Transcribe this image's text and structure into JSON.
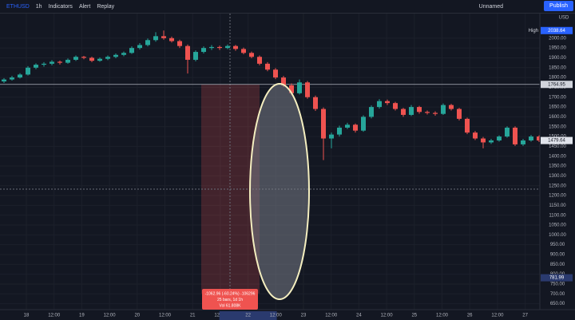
{
  "toolbar": {
    "symbol": "ETHUSD",
    "interval": "1h",
    "indicators": "Indicators",
    "alert": "Alert",
    "replay": "Replay",
    "layout": "Unnamed",
    "publish": "Publish"
  },
  "chart_data": {
    "type": "candlestick",
    "currency": "USD",
    "colors": {
      "up": "#26a69a",
      "down": "#ef5350"
    },
    "candles": [
      [
        1780,
        1797,
        1772,
        1790
      ],
      [
        1790,
        1808,
        1784,
        1800
      ],
      [
        1800,
        1822,
        1795,
        1815
      ],
      [
        1815,
        1858,
        1810,
        1850
      ],
      [
        1850,
        1872,
        1842,
        1865
      ],
      [
        1865,
        1878,
        1855,
        1870
      ],
      [
        1870,
        1888,
        1862,
        1880
      ],
      [
        1880,
        1886,
        1866,
        1875
      ],
      [
        1875,
        1897,
        1870,
        1890
      ],
      [
        1890,
        1912,
        1884,
        1905
      ],
      [
        1905,
        1910,
        1893,
        1900
      ],
      [
        1900,
        1906,
        1878,
        1885
      ],
      [
        1885,
        1902,
        1880,
        1895
      ],
      [
        1895,
        1912,
        1888,
        1905
      ],
      [
        1905,
        1922,
        1898,
        1915
      ],
      [
        1915,
        1932,
        1908,
        1925
      ],
      [
        1925,
        1958,
        1920,
        1950
      ],
      [
        1950,
        1975,
        1942,
        1965
      ],
      [
        1965,
        1998,
        1958,
        1990
      ],
      [
        1990,
        2030,
        1982,
        2010
      ],
      [
        2010,
        2038.64,
        1992,
        2000
      ],
      [
        2000,
        2008,
        1978,
        1985
      ],
      [
        1985,
        1992,
        1950,
        1960
      ],
      [
        1960,
        1968,
        1820,
        1890
      ],
      [
        1890,
        1938,
        1882,
        1930
      ],
      [
        1930,
        1958,
        1922,
        1950
      ],
      [
        1950,
        1965,
        1940,
        1955
      ],
      [
        1955,
        1962,
        1940,
        1950
      ],
      [
        1950,
        1968,
        1944,
        1960
      ],
      [
        1960,
        1966,
        1936,
        1945
      ],
      [
        1945,
        1952,
        1918,
        1925
      ],
      [
        1925,
        1932,
        1898,
        1905
      ],
      [
        1905,
        1912,
        1862,
        1870
      ],
      [
        1870,
        1878,
        1832,
        1840
      ],
      [
        1840,
        1848,
        1792,
        1800
      ],
      [
        1800,
        1808,
        1752,
        1760
      ],
      [
        1760,
        1770,
        1710,
        1720
      ],
      [
        1720,
        1790,
        1714,
        1775
      ],
      [
        1775,
        1782,
        1692,
        1700
      ],
      [
        1700,
        1708,
        1630,
        1640
      ],
      [
        1640,
        1648,
        1380,
        1490
      ],
      [
        1490,
        1520,
        1440,
        1510
      ],
      [
        1510,
        1555,
        1500,
        1545
      ],
      [
        1545,
        1570,
        1538,
        1560
      ],
      [
        1560,
        1566,
        1520,
        1530
      ],
      [
        1530,
        1608,
        1524,
        1600
      ],
      [
        1600,
        1658,
        1592,
        1650
      ],
      [
        1650,
        1690,
        1642,
        1680
      ],
      [
        1680,
        1688,
        1660,
        1670
      ],
      [
        1670,
        1676,
        1632,
        1640
      ],
      [
        1640,
        1646,
        1600,
        1610
      ],
      [
        1610,
        1660,
        1604,
        1650
      ],
      [
        1650,
        1656,
        1616,
        1625
      ],
      [
        1625,
        1632,
        1612,
        1620
      ],
      [
        1620,
        1628,
        1606,
        1615
      ],
      [
        1615,
        1668,
        1610,
        1660
      ],
      [
        1660,
        1666,
        1632,
        1640
      ],
      [
        1640,
        1646,
        1582,
        1590
      ],
      [
        1590,
        1596,
        1512,
        1520
      ],
      [
        1520,
        1528,
        1482,
        1490
      ],
      [
        1490,
        1498,
        1440,
        1470
      ],
      [
        1470,
        1488,
        1462,
        1480
      ],
      [
        1480,
        1506,
        1474,
        1500
      ],
      [
        1500,
        1552,
        1494,
        1545
      ],
      [
        1545,
        1552,
        1452,
        1460
      ],
      [
        1460,
        1488,
        1452,
        1480
      ],
      [
        1480,
        1508,
        1474,
        1500
      ],
      [
        1500,
        1506,
        1472,
        1479.64
      ]
    ],
    "ylim": [
      620,
      2125
    ],
    "yticks": [
      {
        "value": 650,
        "label": "650.00"
      },
      {
        "value": 700,
        "label": "700.00"
      },
      {
        "value": 750,
        "label": "750.00"
      },
      {
        "value": 800,
        "label": "800.00"
      },
      {
        "value": 850,
        "label": "850.00"
      },
      {
        "value": 900,
        "label": "900.00"
      },
      {
        "value": 950,
        "label": "950.00"
      },
      {
        "value": 1000,
        "label": "1000.00"
      },
      {
        "value": 1050,
        "label": "1050.00"
      },
      {
        "value": 1100,
        "label": "1100.00"
      },
      {
        "value": 1150,
        "label": "1150.00"
      },
      {
        "value": 1200,
        "label": "1200.00"
      },
      {
        "value": 1250,
        "label": "1250.00"
      },
      {
        "value": 1300,
        "label": "1300.00"
      },
      {
        "value": 1350,
        "label": "1350.00"
      },
      {
        "value": 1400,
        "label": "1400.00"
      },
      {
        "value": 1450,
        "label": "1450.00"
      },
      {
        "value": 1500,
        "label": "1500.00"
      },
      {
        "value": 1550,
        "label": "1550.00"
      },
      {
        "value": 1600,
        "label": "1600.00"
      },
      {
        "value": 1650,
        "label": "1650.00"
      },
      {
        "value": 1700,
        "label": "1700.00"
      },
      {
        "value": 1750,
        "label": "1750.00"
      },
      {
        "value": 1800,
        "label": "1800.00"
      },
      {
        "value": 1850,
        "label": "1850.00"
      },
      {
        "value": 1900,
        "label": "1900.00"
      },
      {
        "value": 1950,
        "label": "1950.00"
      },
      {
        "value": 2000,
        "label": "2000.00"
      }
    ],
    "xticks": [
      "18",
      "12:00",
      "19",
      "12:00",
      "20",
      "12:00",
      "21",
      "12:00",
      "22",
      "12:00",
      "23",
      "12:00",
      "24",
      "12:00",
      "25",
      "12:00",
      "26",
      "12:00",
      "27"
    ],
    "high_label": "High",
    "high": 2038.64,
    "line_price": 1764.95,
    "last_price": 1479.64,
    "crosshair_price": 781.99,
    "crosshair_date": "22",
    "measure": {
      "change": -1062.96,
      "lines": [
        "-1062.96 (-60.24%) -106296",
        "25 bars, 1d 1h",
        "Vol 61.808K"
      ]
    }
  }
}
